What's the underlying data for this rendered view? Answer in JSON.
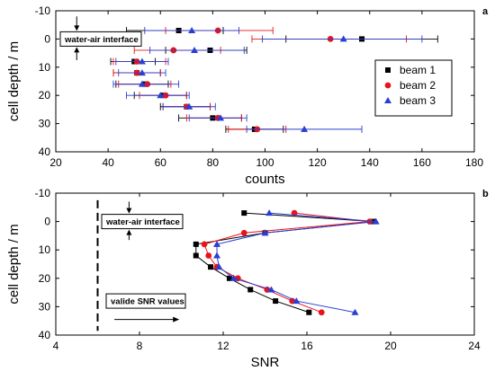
{
  "colors": {
    "beam 1": "#000000",
    "beam 2": "#e8141b",
    "beam 3": "#2a3fd1"
  },
  "chart_data": [
    {
      "panel": "a",
      "type": "scatter",
      "xlabel": "counts",
      "ylabel": "cell depth / m",
      "xlim": [
        20,
        180
      ],
      "ylim": [
        40,
        -10
      ],
      "xticks": [
        20,
        40,
        60,
        80,
        100,
        120,
        140,
        160,
        180
      ],
      "yticks": [
        -10,
        0,
        10,
        20,
        30,
        40
      ],
      "y_axis_inverted": true,
      "annotation": "water-air interface",
      "legend_position": "right",
      "series": [
        {
          "name": "beam 1",
          "marker": "square",
          "points": [
            {
              "y": -3,
              "x": 67,
              "xerr": [
                47,
                84
              ]
            },
            {
              "y": 0,
              "x": 137,
              "xerr": [
                108,
                166
              ]
            },
            {
              "y": 4,
              "x": 79,
              "xerr": [
                62,
                93
              ]
            },
            {
              "y": 8,
              "x": 50,
              "xerr": [
                41,
                58
              ]
            },
            {
              "y": 12,
              "x": 51,
              "xerr": [
                42,
                60
              ]
            },
            {
              "y": 16,
              "x": 54,
              "xerr": [
                43,
                63
              ]
            },
            {
              "y": 20,
              "x": 61,
              "xerr": [
                50,
                70
              ]
            },
            {
              "y": 24,
              "x": 70,
              "xerr": [
                60,
                79
              ]
            },
            {
              "y": 28,
              "x": 80,
              "xerr": [
                67,
                91
              ]
            },
            {
              "y": 32,
              "x": 96,
              "xerr": [
                85,
                107
              ]
            }
          ]
        },
        {
          "name": "beam 2",
          "marker": "circle",
          "points": [
            {
              "y": -3,
              "x": 82,
              "xerr": [
                62,
                103
              ]
            },
            {
              "y": 0,
              "x": 125,
              "xerr": [
                95,
                154
              ]
            },
            {
              "y": 4,
              "x": 65,
              "xerr": [
                50,
                83
              ]
            },
            {
              "y": 8,
              "x": 51,
              "xerr": [
                42,
                62
              ]
            },
            {
              "y": 12,
              "x": 51,
              "xerr": [
                42,
                60
              ]
            },
            {
              "y": 16,
              "x": 55,
              "xerr": [
                44,
                64
              ]
            },
            {
              "y": 20,
              "x": 62,
              "xerr": [
                52,
                70
              ]
            },
            {
              "y": 24,
              "x": 70,
              "xerr": [
                61,
                79
              ]
            },
            {
              "y": 28,
              "x": 82,
              "xerr": [
                70,
                91
              ]
            },
            {
              "y": 32,
              "x": 97,
              "xerr": [
                86,
                108
              ]
            }
          ]
        },
        {
          "name": "beam 3",
          "marker": "triangle",
          "points": [
            {
              "y": -3,
              "x": 72,
              "xerr": [
                54,
                90
              ]
            },
            {
              "y": 0,
              "x": 130,
              "xerr": [
                99,
                160
              ]
            },
            {
              "y": 4,
              "x": 73,
              "xerr": [
                56,
                92
              ]
            },
            {
              "y": 8,
              "x": 53,
              "xerr": [
                43,
                63
              ]
            },
            {
              "y": 12,
              "x": 53,
              "xerr": [
                44,
                62
              ]
            },
            {
              "y": 16,
              "x": 53,
              "xerr": [
                42,
                67
              ]
            },
            {
              "y": 20,
              "x": 60,
              "xerr": [
                47,
                71
              ]
            },
            {
              "y": 24,
              "x": 71,
              "xerr": [
                61,
                81
              ]
            },
            {
              "y": 28,
              "x": 83,
              "xerr": [
                71,
                93
              ]
            },
            {
              "y": 32,
              "x": 115,
              "xerr": [
                93,
                137
              ]
            }
          ]
        }
      ]
    },
    {
      "panel": "b",
      "type": "line",
      "xlabel": "SNR",
      "ylabel": "cell depth / m",
      "xlim": [
        4,
        24
      ],
      "ylim": [
        40,
        -10
      ],
      "xticks": [
        4,
        8,
        12,
        16,
        20,
        24
      ],
      "yticks": [
        -10,
        0,
        10,
        20,
        30,
        40
      ],
      "y_axis_inverted": true,
      "annotations": [
        "water-air interface",
        "valide SNR values"
      ],
      "threshold_x": 6,
      "series": [
        {
          "name": "beam 1",
          "marker": "square",
          "points": [
            {
              "x": 13.0,
              "y": -3
            },
            {
              "x": 19.2,
              "y": 0
            },
            {
              "x": 14.0,
              "y": 4
            },
            {
              "x": 10.7,
              "y": 8
            },
            {
              "x": 10.7,
              "y": 12
            },
            {
              "x": 11.4,
              "y": 16
            },
            {
              "x": 12.3,
              "y": 20
            },
            {
              "x": 13.3,
              "y": 24
            },
            {
              "x": 14.5,
              "y": 28
            },
            {
              "x": 16.1,
              "y": 32
            }
          ]
        },
        {
          "name": "beam 2",
          "marker": "circle",
          "points": [
            {
              "x": 15.4,
              "y": -3
            },
            {
              "x": 19.0,
              "y": 0
            },
            {
              "x": 13.0,
              "y": 4
            },
            {
              "x": 11.1,
              "y": 8
            },
            {
              "x": 11.3,
              "y": 12
            },
            {
              "x": 11.7,
              "y": 16
            },
            {
              "x": 12.7,
              "y": 20
            },
            {
              "x": 14.1,
              "y": 24
            },
            {
              "x": 15.3,
              "y": 28
            },
            {
              "x": 16.7,
              "y": 32
            }
          ]
        },
        {
          "name": "beam 3",
          "marker": "triangle",
          "points": [
            {
              "x": 14.2,
              "y": -3
            },
            {
              "x": 19.3,
              "y": 0
            },
            {
              "x": 14.0,
              "y": 4
            },
            {
              "x": 11.7,
              "y": 8
            },
            {
              "x": 11.7,
              "y": 12
            },
            {
              "x": 11.8,
              "y": 16
            },
            {
              "x": 12.5,
              "y": 20
            },
            {
              "x": 14.3,
              "y": 24
            },
            {
              "x": 15.5,
              "y": 28
            },
            {
              "x": 18.3,
              "y": 32
            }
          ]
        }
      ]
    }
  ]
}
